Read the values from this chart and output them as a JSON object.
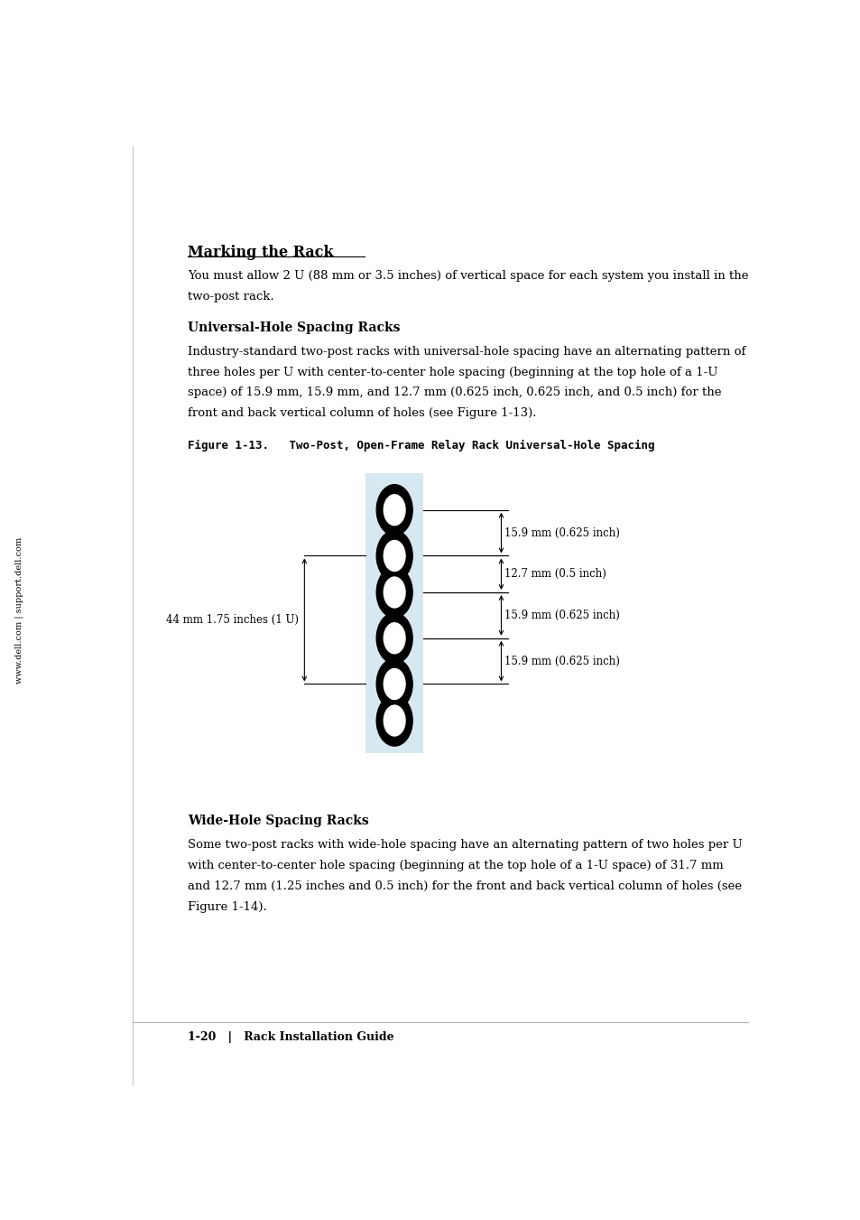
{
  "page_bg": "#ffffff",
  "text_color": "#000000",
  "sidebar_text": "www.dell.com | support.dell.com",
  "section_title": "Marking the Rack",
  "section_body": "You must allow 2 U (88 mm or 3.5 inches) of vertical space for each system you install in the\ntwo-post rack.",
  "subsection1_title": "Universal-Hole Spacing Racks",
  "subsection1_body": "Industry-standard two-post racks with universal-hole spacing have an alternating pattern of\nthree holes per U with center-to-center hole spacing (beginning at the top hole of a 1-U\nspace) of 15.9 mm, 15.9 mm, and 12.7 mm (0.625 inch, 0.625 inch, and 0.5 inch) for the\nfront and back vertical column of holes (see Figure 1-13).",
  "figure_caption": "Figure 1-13.   Two-Post, Open-Frame Relay Rack Universal-Hole Spacing",
  "subsection2_title": "Wide-Hole Spacing Racks",
  "subsection2_body": "Some two-post racks with wide-hole spacing have an alternating pattern of two holes per U\nwith center-to-center hole spacing (beginning at the top hole of a 1-U space) of 31.7 mm\nand 12.7 mm (1.25 inches and 0.5 inch) for the front and back vertical column of holes (see\nFigure 1-14).",
  "footer_text": "1-20   |   Rack Installation Guide",
  "dim_labels": [
    "15.9 mm (0.625 inch)",
    "12.7 mm (0.5 inch)",
    "15.9 mm (0.625 inch)",
    "15.9 mm (0.625 inch)"
  ],
  "left_dim_label": "44 mm 1.75 inches (1 U)",
  "hole_bg_color": "#d8e8f0",
  "hole_outer_color": "#000000",
  "hole_inner_color": "#ffffff"
}
